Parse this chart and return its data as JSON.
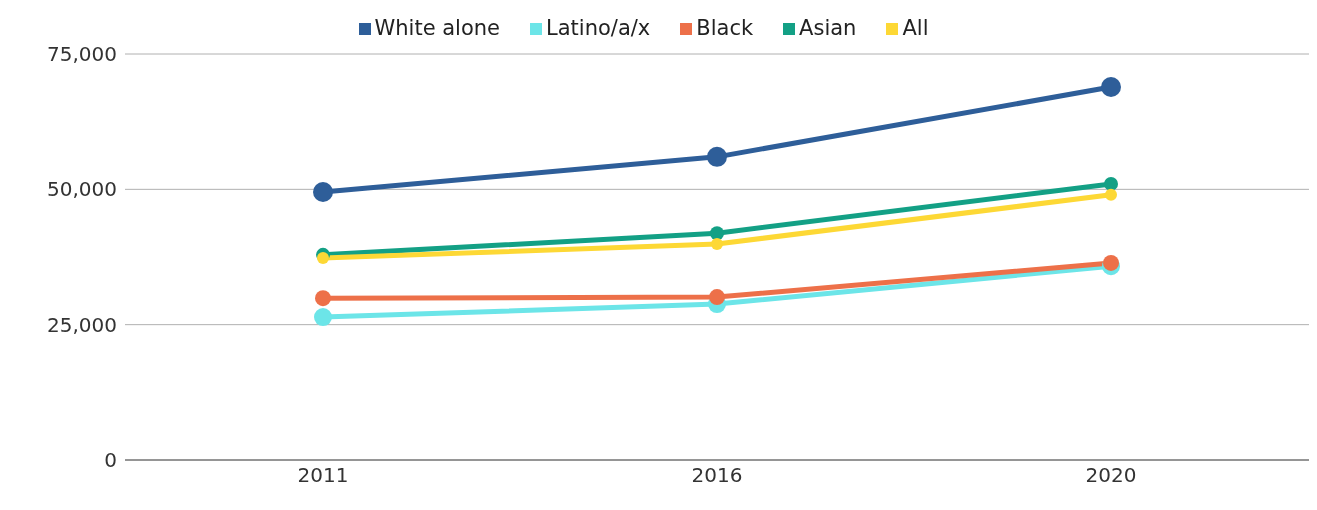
{
  "chart_data": {
    "type": "line",
    "categories": [
      "2011",
      "2016",
      "2020"
    ],
    "series": [
      {
        "name": "White alone",
        "color": "#2e5e99",
        "values": [
          49500,
          56000,
          68900
        ]
      },
      {
        "name": "Latino/a/x",
        "color": "#6ce5e8",
        "values": [
          26400,
          28800,
          35800
        ]
      },
      {
        "name": "Black",
        "color": "#ed7049",
        "values": [
          29900,
          30100,
          36400
        ]
      },
      {
        "name": "Asian",
        "color": "#13a085",
        "values": [
          37900,
          41900,
          51000
        ]
      },
      {
        "name": "All",
        "color": "#fdd835",
        "values": [
          37300,
          39900,
          49000
        ]
      }
    ],
    "ylim": [
      0,
      75000
    ],
    "yticks": [
      {
        "value": 0,
        "label": "0"
      },
      {
        "value": 25000,
        "label": "25,000"
      },
      {
        "value": 50000,
        "label": "50,000"
      },
      {
        "value": 75000,
        "label": "75,000"
      }
    ],
    "grid": "y",
    "legend": "top",
    "marker": "circle",
    "line_style": "solid"
  }
}
